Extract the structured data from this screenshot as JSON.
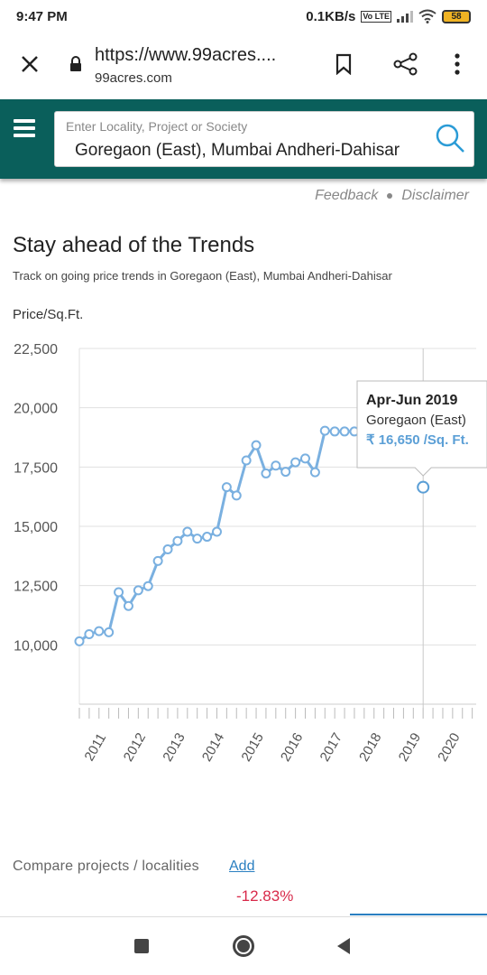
{
  "status_bar": {
    "time": "9:47 PM",
    "network_speed": "0.1KB/s",
    "volte": "Vo LTE",
    "battery": "58"
  },
  "browser": {
    "url": "https://www.99acres....",
    "domain": "99acres.com"
  },
  "header": {
    "search_placeholder": "Enter Locality, Project or Society",
    "search_value": "Goregaon (East), Mumbai Andheri-Dahisar"
  },
  "links": {
    "feedback": "Feedback",
    "disclaimer": "Disclaimer"
  },
  "page": {
    "title": "Stay ahead of the Trends",
    "subtitle": "Track on going price trends in Goregaon (East), Mumbai Andheri-Dahisar"
  },
  "chart_data": {
    "type": "line",
    "ylabel": "Price/Sq.Ft.",
    "ylim": [
      7500,
      22500
    ],
    "y_ticks": [
      "22,500",
      "20,000",
      "17,500",
      "15,000",
      "12,500",
      "10,000"
    ],
    "y_tick_values": [
      22500,
      20000,
      17500,
      15000,
      12500,
      10000
    ],
    "x_tick_labels": [
      "2011",
      "2012",
      "2013",
      "2014",
      "2015",
      "2016",
      "2017",
      "2018",
      "2019",
      "2020"
    ],
    "xlim": [
      2010.5,
      2020.6
    ],
    "grid": true,
    "series": [
      {
        "x": [
          2010.5,
          2010.75,
          2011.0,
          2011.25,
          2011.5,
          2011.75,
          2012.0,
          2012.25,
          2012.5,
          2012.75,
          2013.0,
          2013.25,
          2013.5,
          2013.75,
          2014.0,
          2014.25,
          2014.5,
          2014.75,
          2015.0,
          2015.25,
          2015.5,
          2015.75,
          2016.0,
          2016.25,
          2016.5,
          2016.75,
          2017.0,
          2017.25,
          2017.5,
          2017.75,
          2018.0,
          2018.25
        ],
        "y": [
          10150,
          10450,
          10580,
          10530,
          12220,
          11640,
          12300,
          12480,
          13540,
          14030,
          14380,
          14770,
          14480,
          14560,
          14770,
          16650,
          16300,
          17780,
          18420,
          17230,
          17560,
          17300,
          17700,
          17860,
          17280,
          19030,
          19000,
          19000,
          19000,
          19150,
          19420,
          19940
        ]
      },
      {
        "x": [
          2019.25
        ],
        "y": [
          16650
        ]
      }
    ],
    "tooltip": {
      "period": "Apr-Jun 2019",
      "location": "Goregaon (East)",
      "value": "₹ 16,650 /Sq. Ft."
    },
    "colors": {
      "line": "#7ab0e0",
      "tooltip_value": "#5b9fd6",
      "grid": "#e0e0e0"
    }
  },
  "compare": {
    "label": "Compare projects / localities",
    "add": "Add",
    "change": "-12.83%"
  }
}
